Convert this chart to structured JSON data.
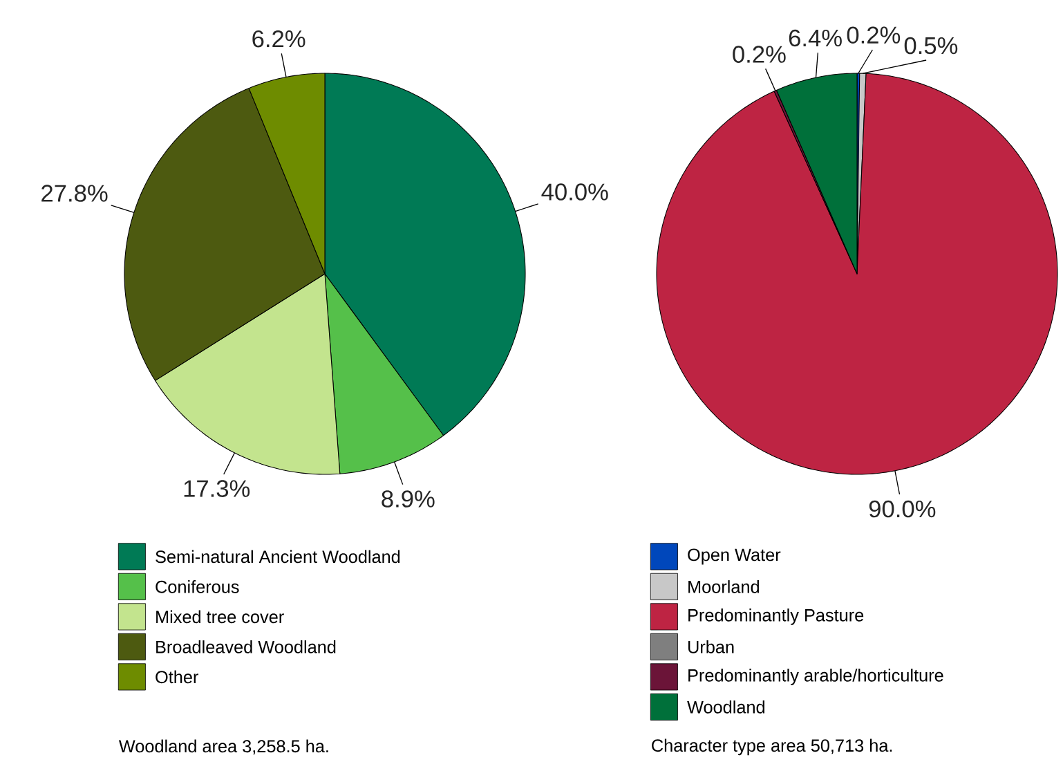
{
  "chart_data": [
    {
      "type": "pie",
      "categories": [
        "Semi-natural Ancient Woodland",
        "Coniferous",
        "Mixed tree cover",
        "Broadleaved Woodland",
        "Other"
      ],
      "values": [
        40.0,
        8.9,
        17.3,
        27.8,
        6.2
      ],
      "colors": [
        "#007a55",
        "#55c04a",
        "#c3e48e",
        "#4d5a10",
        "#6e8c00"
      ],
      "value_labels": [
        "40.0%",
        "8.9%",
        "17.3%",
        "27.8%",
        "6.2%"
      ],
      "legend": "bottom",
      "annotations": [
        "Woodland area 3,258.5 ha."
      ]
    },
    {
      "type": "pie",
      "categories": [
        "Open Water",
        "Moorland",
        "Predominantly Pasture",
        "Urban",
        "Predominantly arable/horticulture",
        "Woodland"
      ],
      "values": [
        0.2,
        0.5,
        90.0,
        0,
        0.2,
        6.4
      ],
      "colors": [
        "#0047bb",
        "#c8c8c8",
        "#be2443",
        "#7f7f7f",
        "#6b1438",
        "#00703a"
      ],
      "value_labels": [
        "0.2%",
        "0.5%",
        "90.0%",
        null,
        "0.2%",
        "6.4%"
      ],
      "legend": "bottom",
      "annotations": [
        "Character type area 50,713 ha."
      ]
    }
  ]
}
